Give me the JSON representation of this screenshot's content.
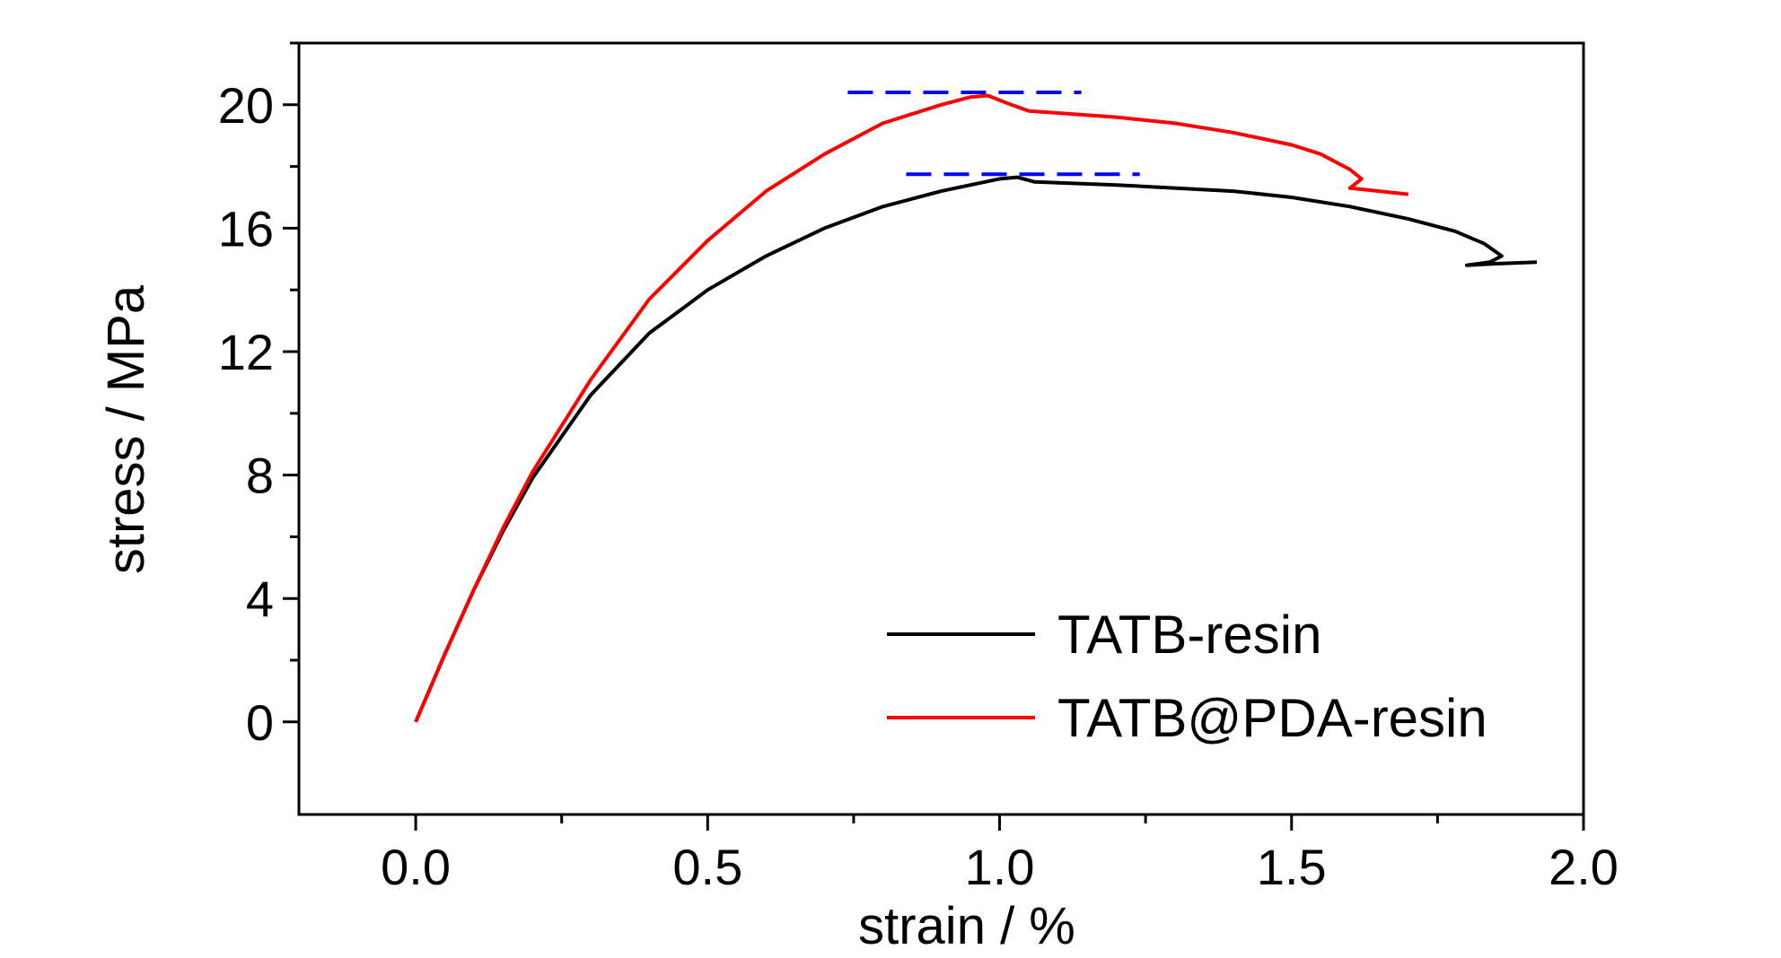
{
  "chart_data": {
    "type": "line",
    "xlabel": "strain / %",
    "ylabel": "stress / MPa",
    "xlim": [
      -0.2,
      2.0
    ],
    "ylim": [
      -3,
      22
    ],
    "x_ticks": [
      "0.0",
      "0.5",
      "1.0",
      "1.5",
      "2.0"
    ],
    "y_ticks": [
      "0",
      "4",
      "8",
      "12",
      "16",
      "20"
    ],
    "grid": false,
    "legend_position": "bottom-right",
    "series": [
      {
        "name": "TATB-resin",
        "color": "#000000",
        "points": [
          [
            0.0,
            0.0
          ],
          [
            0.05,
            2.2
          ],
          [
            0.1,
            4.3
          ],
          [
            0.15,
            6.2
          ],
          [
            0.2,
            7.9
          ],
          [
            0.3,
            10.6
          ],
          [
            0.4,
            12.6
          ],
          [
            0.5,
            14.0
          ],
          [
            0.6,
            15.1
          ],
          [
            0.7,
            16.0
          ],
          [
            0.8,
            16.7
          ],
          [
            0.9,
            17.2
          ],
          [
            1.0,
            17.6
          ],
          [
            1.03,
            17.65
          ],
          [
            1.06,
            17.5
          ],
          [
            1.2,
            17.4
          ],
          [
            1.4,
            17.2
          ],
          [
            1.5,
            17.0
          ],
          [
            1.6,
            16.7
          ],
          [
            1.7,
            16.3
          ],
          [
            1.78,
            15.9
          ],
          [
            1.83,
            15.5
          ],
          [
            1.86,
            15.1
          ],
          [
            1.84,
            14.9
          ],
          [
            1.8,
            14.8
          ],
          [
            1.85,
            14.85
          ],
          [
            1.92,
            14.9
          ]
        ]
      },
      {
        "name": "TATB@PDA-resin",
        "color": "#ff0000",
        "points": [
          [
            0.0,
            0.0
          ],
          [
            0.05,
            2.2
          ],
          [
            0.1,
            4.3
          ],
          [
            0.15,
            6.3
          ],
          [
            0.2,
            8.1
          ],
          [
            0.3,
            11.1
          ],
          [
            0.4,
            13.7
          ],
          [
            0.5,
            15.6
          ],
          [
            0.6,
            17.2
          ],
          [
            0.7,
            18.4
          ],
          [
            0.8,
            19.4
          ],
          [
            0.9,
            20.0
          ],
          [
            0.95,
            20.25
          ],
          [
            0.98,
            20.3
          ],
          [
            1.02,
            20.0
          ],
          [
            1.05,
            19.8
          ],
          [
            1.2,
            19.6
          ],
          [
            1.3,
            19.4
          ],
          [
            1.4,
            19.1
          ],
          [
            1.5,
            18.7
          ],
          [
            1.55,
            18.4
          ],
          [
            1.6,
            17.9
          ],
          [
            1.62,
            17.6
          ],
          [
            1.6,
            17.3
          ],
          [
            1.65,
            17.2
          ],
          [
            1.7,
            17.1
          ]
        ]
      }
    ],
    "annotations": [
      {
        "type": "dashed-line",
        "color": "#0000ff",
        "y": 20.4,
        "x_start": 0.74,
        "x_end": 1.14
      },
      {
        "type": "dashed-line",
        "color": "#0000ff",
        "y": 17.75,
        "x_start": 0.84,
        "x_end": 1.24
      }
    ]
  }
}
